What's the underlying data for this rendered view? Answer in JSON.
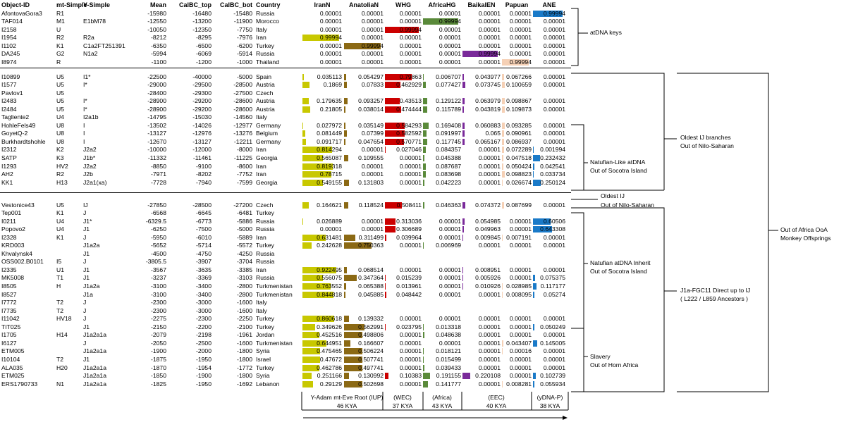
{
  "headers": [
    "Object-ID",
    "mt-Simple",
    "Y-Simple",
    "Mean",
    "CalBC_top",
    "CalBC_bot",
    "Country",
    "IranN",
    "AnatoliaN",
    "WHG",
    "AfricaHG",
    "BaikalEN",
    "Papuan",
    "ANE"
  ],
  "colors": {
    "IranN": "#c8c800",
    "AnatoliaN": "#8b6914",
    "WHG": "#cc0000",
    "AfricaHG": "#5a8a3a",
    "BaikalEN": "#7a2a9a",
    "Papuan": "#f5d0b5",
    "ANE": "#1a7ac8"
  },
  "groups": [
    {
      "rows": [
        [
          "AfontovaGora3",
          "R1",
          "",
          "-15980",
          "-16480",
          "-15480",
          "Russia",
          "0.00001",
          "0.00001",
          "0.00001",
          "0.00001",
          "0.00001",
          "0.00001",
          "0.99994"
        ],
        [
          "TAF014",
          "M1",
          "E1bM78",
          "-12550",
          "-13200",
          "-11900",
          "Morocco",
          "0.00001",
          "0.00001",
          "0.00001",
          "0.99994",
          "0.00001",
          "0.00001",
          "0.00001"
        ],
        [
          "I2158",
          "U",
          "",
          "-10050",
          "-12350",
          "-7750",
          "Italy",
          "0.00001",
          "0.00001",
          "0.99994",
          "0.00001",
          "0.00001",
          "0.00001",
          "0.00001"
        ],
        [
          "I1954",
          "R2",
          "R2a",
          "-8212",
          "-8295",
          "-7976",
          "Iran",
          "0.99994",
          "0.00001",
          "0.00001",
          "0.00001",
          "0.00001",
          "0.00001",
          "0.00001"
        ],
        [
          "I1102",
          "K1",
          "C1a2FT251391",
          "-6350",
          "-6500",
          "-6200",
          "Turkey",
          "0.00001",
          "0.99994",
          "0.00001",
          "0.00001",
          "0.00001",
          "0.00001",
          "0.00001"
        ],
        [
          "DA245",
          "G2",
          "N1a2",
          "-5994",
          "-6069",
          "-5914",
          "Russia",
          "0.00001",
          "0.00001",
          "0.00001",
          "0.00001",
          "0.99994",
          "0.00001",
          "0.00001"
        ],
        [
          "I8974",
          "R",
          "",
          "-1100",
          "-1200",
          "-1000",
          "Thailand",
          "0.00001",
          "0.00001",
          "0.00001",
          "0.00001",
          "0.00001",
          "0.99994",
          "0.00001"
        ]
      ]
    },
    {
      "rows": [
        [
          "I10899",
          "U5",
          "I1*",
          "-22500",
          "-40000",
          "-5000",
          "Spain",
          "0.035113",
          "0.054297",
          "0.79863",
          "0.006707",
          "0.043977",
          "0.067266",
          "0.00001"
        ],
        [
          "I1577",
          "U5",
          "I*",
          "-29000",
          "-29500",
          "-28500",
          "Austria",
          "0.1869",
          "0.07833",
          "0.462929",
          "0.077427",
          "0.073745",
          "0.100659",
          "0.00001"
        ],
        [
          "Pavlov1",
          "U5",
          "",
          "-28400",
          "-29300",
          "-27500",
          "Czech",
          "",
          "",
          "",
          "",
          "",
          "",
          ""
        ],
        [
          "I2483",
          "U5",
          "I*",
          "-28900",
          "-29200",
          "-28600",
          "Austria",
          "0.179635",
          "0.093257",
          "0.43513",
          "0.129122",
          "0.063979",
          "0.098867",
          "0.00001"
        ],
        [
          "I2484",
          "U5",
          "I*",
          "-28900",
          "-29200",
          "-28600",
          "Austria",
          "0.21805",
          "0.038014",
          "0.474444",
          "0.115789",
          "0.043819",
          "0.109873",
          "0.00001"
        ],
        [
          "Tagliente2",
          "U4",
          "I2a1b",
          "-14795",
          "-15030",
          "-14560",
          "Italy",
          "",
          "",
          "",
          "",
          "",
          "",
          ""
        ],
        [
          "HohleFels49",
          "U8",
          "I",
          "-13502",
          "-14026",
          "-12977",
          "Germany",
          "0.027972",
          "0.035149",
          "0.584293",
          "0.169408",
          "0.060883",
          "0.093285",
          "0.00001"
        ],
        [
          "GoyetQ-2",
          "U8",
          "I",
          "-13127",
          "-12976",
          "-13276",
          "Belgium",
          "0.081449",
          "0.07399",
          "0.582592",
          "0.091997",
          "0.065",
          "0.090961",
          "0.00001"
        ],
        [
          "Burkhardtshohle",
          "U8",
          "I",
          "-12670",
          "-13127",
          "-12211",
          "Germany",
          "0.091717",
          "0.047654",
          "0.570771",
          "0.117745",
          "0.065167",
          "0.086937",
          "0.00001"
        ],
        [
          "I2312",
          "K2",
          "J2a2",
          "-10000",
          "-12000",
          "-8000",
          "Iran",
          "0.814294",
          "0.00001",
          "0.027046",
          "0.084357",
          "0.00001",
          "0.072289",
          "0.001994"
        ],
        [
          "SATP",
          "K3",
          "J1b*",
          "-11332",
          "-11461",
          "-11225",
          "Georgia",
          "0.565087",
          "0.109555",
          "0.00001",
          "0.045388",
          "0.00001",
          "0.047518",
          "0.232432"
        ],
        [
          "I1293",
          "HV2",
          "J2a2",
          "-8850",
          "-9100",
          "-8600",
          "Iran",
          "0.819318",
          "0.00001",
          "0.00001",
          "0.087687",
          "0.00001",
          "0.050424",
          "0.042541"
        ],
        [
          "AH2",
          "R2",
          "J2b",
          "-7971",
          "-8202",
          "-7752",
          "Iran",
          "0.78715",
          "0.00001",
          "0.00001",
          "0.083698",
          "0.00001",
          "0.098823",
          "0.033734"
        ],
        [
          "KK1",
          "H13",
          "J2a1(xa)",
          "-7728",
          "-7940",
          "-7599",
          "Georgia",
          "0.549155",
          "0.131803",
          "0.00001",
          "0.042223",
          "0.00001",
          "0.026674",
          "0.250124"
        ]
      ]
    },
    {
      "rows": [
        [
          "Vestonice43",
          "U5",
          "IJ",
          "-27850",
          "-28500",
          "-27200",
          "Czech",
          "0.164621",
          "0.118524",
          "0.508411",
          "0.046363",
          "0.074372",
          "0.087699",
          "0.00001"
        ],
        [
          "Tep001",
          "K1",
          "J",
          "-6568",
          "-6645",
          "-6481",
          "Turkey",
          "",
          "",
          "",
          "",
          "",
          "",
          ""
        ],
        [
          "I0211",
          "U4",
          "J1*",
          "-6329.5",
          "-6773",
          "-5886",
          "Russia",
          "0.026889",
          "0.00001",
          "0.313036",
          "0.00001",
          "0.054985",
          "0.00001",
          "0.60506"
        ],
        [
          "Popovo2",
          "U4",
          "J1",
          "-6250",
          "-7500",
          "-5000",
          "Russia",
          "0.00001",
          "0.00001",
          "0.306689",
          "0.00001",
          "0.049963",
          "0.00001",
          "0.643308"
        ],
        [
          "I2328",
          "K1",
          "J",
          "-5950",
          "-6010",
          "-5889",
          "Iran",
          "0.631481",
          "0.311499",
          "0.039964",
          "0.00001",
          "0.009845",
          "0.007191",
          "0.00001"
        ],
        [
          "KRD003",
          "",
          "J1a2a",
          "-5652",
          "-5714",
          "-5572",
          "Turkey",
          "0.242628",
          "0.750363",
          "0.00001",
          "0.006969",
          "0.00001",
          "0.00001",
          "0.00001"
        ],
        [
          "Khvalynsk4",
          "",
          "J1",
          "-4500",
          "-4750",
          "-4250",
          "Russia",
          "",
          "",
          "",
          "",
          "",
          "",
          ""
        ],
        [
          "OSS002.B0101",
          "I5",
          "J",
          "-3805.5",
          "-3907",
          "-3704",
          "Russia",
          "",
          "",
          "",
          "",
          "",
          "",
          ""
        ],
        [
          "I2335",
          "U1",
          "J1",
          "-3567",
          "-3635",
          "-3385",
          "Iran",
          "0.922495",
          "0.068514",
          "0.00001",
          "0.00001",
          "0.008951",
          "0.00001",
          "0.00001"
        ],
        [
          "MK5008",
          "T1",
          "J1",
          "-3237",
          "-3369",
          "-3103",
          "Russia",
          "0.556075",
          "0.347364",
          "0.015239",
          "0.00001",
          "0.005926",
          "0.00001",
          "0.075375"
        ],
        [
          "I8505",
          "H",
          "J1a2a",
          "-3100",
          "-3400",
          "-2800",
          "Turkmenistan",
          "0.763552",
          "0.065388",
          "0.013961",
          "0.00001",
          "0.010926",
          "0.028985",
          "0.117177"
        ],
        [
          "I8527",
          "",
          "J1a",
          "-3100",
          "-3400",
          "-2800",
          "Turkmenistan",
          "0.844818",
          "0.045885",
          "0.048442",
          "0.00001",
          "0.00001",
          "0.008095",
          "0.05274"
        ],
        [
          "I7772",
          "T2",
          "J",
          "-2300",
          "-3000",
          "-1600",
          "Italy",
          "",
          "",
          "",
          "",
          "",
          "",
          ""
        ],
        [
          "I7735",
          "T2",
          "J",
          "-2300",
          "-3000",
          "-1600",
          "Italy",
          "",
          "",
          "",
          "",
          "",
          "",
          ""
        ],
        [
          "I11042",
          "HV18",
          "J",
          "-2275",
          "-2300",
          "-2250",
          "Turkey",
          "0.860618",
          "0.139332",
          "0.00001",
          "0.00001",
          "0.00001",
          "0.00001",
          "0.00001"
        ],
        [
          "TIT025",
          "",
          "J1",
          "-2150",
          "-2200",
          "-2100",
          "Turkey",
          "0.349626",
          "0.562991",
          "0.023795",
          "0.013318",
          "0.00001",
          "0.00001",
          "0.050249"
        ],
        [
          "I1705",
          "H14",
          "J1a2a1a",
          "-2079",
          "-2198",
          "-1961",
          "Jordan",
          "0.452516",
          "0.498806",
          "0.00001",
          "0.048638",
          "0.00001",
          "0.00001",
          "0.00001"
        ],
        [
          "I6127",
          "",
          "J",
          "-2050",
          "-2500",
          "-1600",
          "Turkmenistan",
          "0.644951",
          "0.166607",
          "0.00001",
          "0.00001",
          "0.00001",
          "0.043407",
          "0.145005"
        ],
        [
          "ETM005",
          "",
          "J1a2a1a",
          "-1900",
          "-2000",
          "-1800",
          "Syria",
          "0.475465",
          "0.506224",
          "0.00001",
          "0.018121",
          "0.00001",
          "0.00016",
          "0.00001"
        ],
        [
          "I10104",
          "T2",
          "J1",
          "-1875",
          "-1950",
          "-1800",
          "Israel",
          "0.47672",
          "0.507741",
          "0.00001",
          "0.015499",
          "0.00001",
          "0.00001",
          "0.00001"
        ],
        [
          "ALA035",
          "H20",
          "J1a2a1a",
          "-1870",
          "-1954",
          "-1772",
          "Turkey",
          "0.462786",
          "0.497741",
          "0.00001",
          "0.039433",
          "0.00001",
          "0.00001",
          "0.00001"
        ],
        [
          "ETM025",
          "",
          "J1a2a1a",
          "-1850",
          "-1900",
          "-1800",
          "Syria",
          "0.251166",
          "0.130992",
          "0.10383",
          "0.191155",
          "0.220108",
          "0.00001",
          "0.102739"
        ],
        [
          "ERS1790733",
          "N1",
          "J1a2a1a",
          "-1825",
          "-1950",
          "-1692",
          "Lebanon",
          "0.29129",
          "0.502698",
          "0.00001",
          "0.141777",
          "0.00001",
          "0.008281",
          "0.055934"
        ]
      ]
    }
  ],
  "notes": {
    "n1": "atDNA keys",
    "n2a": "Oldest IJ branches",
    "n2b": "Out of Nilo-Saharan",
    "n3a": "Natufian-Like atDNA",
    "n3b": "Out of Socotra Island",
    "n4a": "Oldest IJ",
    "n4b": "Out of Nilo-Saharan",
    "n5a": "Natufian atDNA Inherit",
    "n5b": "Out of Socotra Island",
    "n6a": "J1a-FGC11 Direct up to IJ",
    "n6b": "( L222 / L859 Ancestors )",
    "n7a": "Slavery",
    "n7b": "Out of Horn Africa",
    "n8a": "Out of Africa OoA",
    "n8b": "Monkey Offsprings"
  },
  "footer": {
    "f1a": "Y-Adam mt-Eve Root (IUP)",
    "f1b": "46 KYA",
    "f2a": "(WEC)",
    "f2b": "37 KYA",
    "f3a": "(Africa)",
    "f3b": "43 KYA",
    "f4a": "(EEC)",
    "f4b": "40 KYA",
    "f5a": "(yDNA-P)",
    "f5b": "38 KYA"
  }
}
